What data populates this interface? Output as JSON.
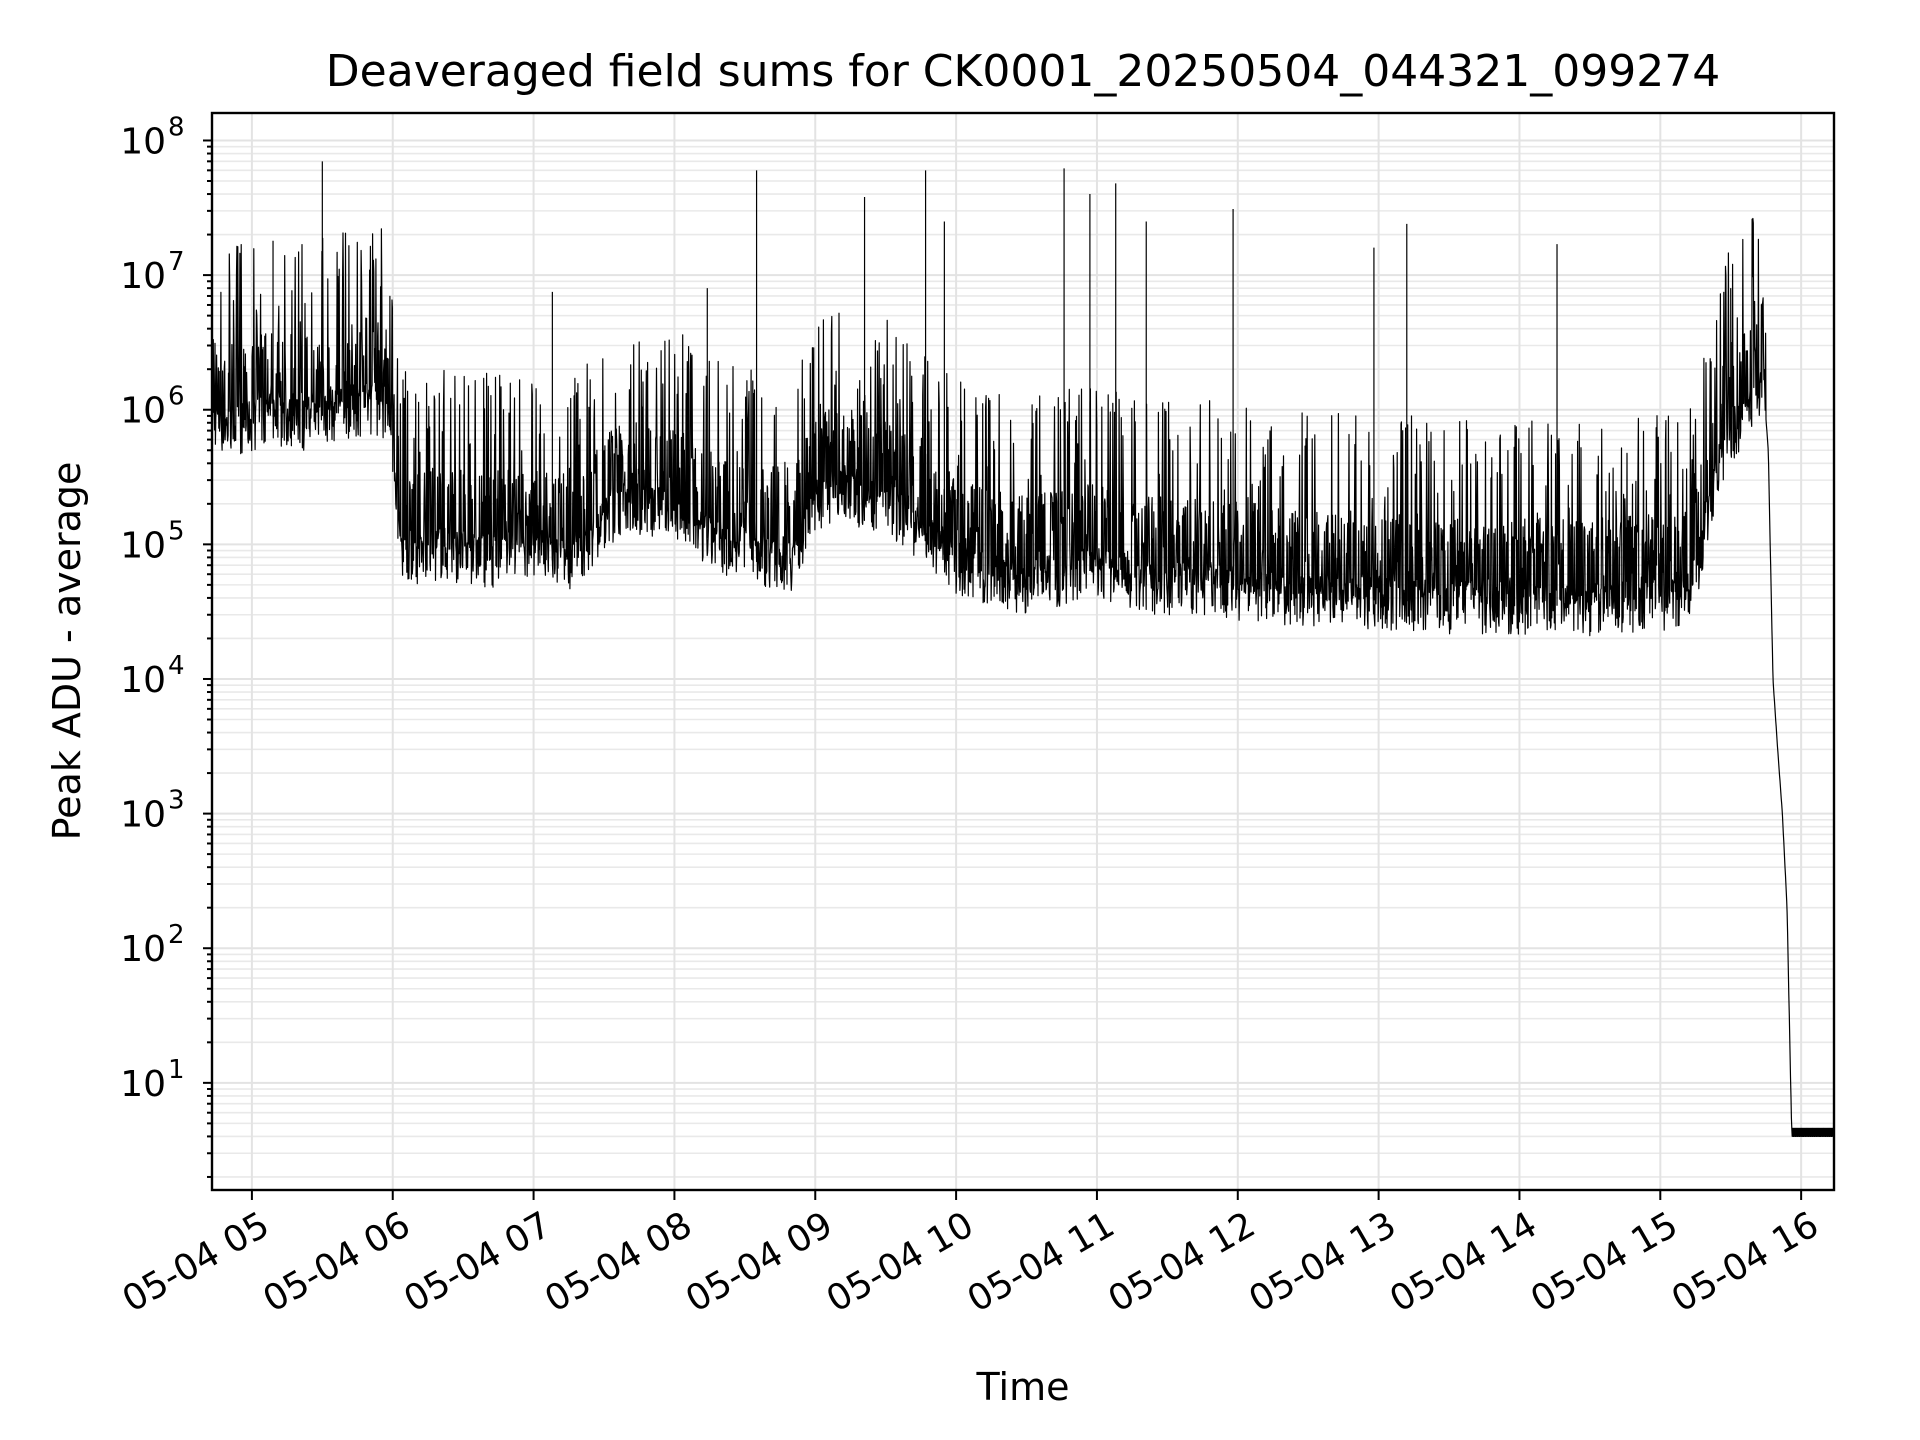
{
  "chart_data": {
    "type": "line",
    "title": "Deaveraged field sums for CK0001_20250504_044321_099274",
    "xlabel": "Time",
    "ylabel": "Peak ADU - average",
    "yscale": "log",
    "ylim": [
      1.6,
      160000000
    ],
    "xlim": [
      "05-04 04:43",
      "05-04 16:14"
    ],
    "x_tick_labels": [
      "05-04 05",
      "05-04 06",
      "05-04 07",
      "05-04 08",
      "05-04 09",
      "05-04 10",
      "05-04 11",
      "05-04 12",
      "05-04 13",
      "05-04 14",
      "05-04 15",
      "05-04 16"
    ],
    "y_tick_labels": [
      {
        "base": "10",
        "exp": "1"
      },
      {
        "base": "10",
        "exp": "2"
      },
      {
        "base": "10",
        "exp": "3"
      },
      {
        "base": "10",
        "exp": "4"
      },
      {
        "base": "10",
        "exp": "5"
      },
      {
        "base": "10",
        "exp": "6"
      },
      {
        "base": "10",
        "exp": "7"
      },
      {
        "base": "10",
        "exp": "8"
      }
    ],
    "grid": true,
    "line_color": "#000000",
    "series": [
      {
        "x": [
          "04:43",
          "04:50",
          "05:00",
          "05:10",
          "05:20",
          "05:30",
          "05:40",
          "05:50",
          "05:58",
          "06:03",
          "06:10",
          "06:20",
          "06:30",
          "06:40",
          "06:50",
          "07:00",
          "07:10",
          "07:20",
          "07:30",
          "07:40",
          "07:50",
          "08:00",
          "08:10",
          "08:20",
          "08:30",
          "08:40",
          "08:50",
          "09:00",
          "09:10",
          "09:20",
          "09:30",
          "09:40",
          "09:50",
          "10:00",
          "10:10",
          "10:20",
          "10:30",
          "10:40",
          "10:50",
          "11:00",
          "11:10",
          "11:20",
          "11:30",
          "11:40",
          "11:50",
          "12:00",
          "12:10",
          "12:20",
          "12:30",
          "12:40",
          "12:50",
          "13:00",
          "13:10",
          "13:20",
          "13:30",
          "13:40",
          "13:50",
          "14:00",
          "14:10",
          "14:20",
          "14:30",
          "14:40",
          "14:50",
          "15:00",
          "15:10",
          "15:15",
          "15:20",
          "15:25",
          "15:30",
          "15:35",
          "15:40",
          "15:44",
          "15:46",
          "15:48",
          "15:50",
          "15:52",
          "15:54",
          "15:56",
          "16:00",
          "16:14"
        ],
        "y": [
          900000,
          700000,
          800000,
          900000,
          800000,
          900000,
          1000000,
          1100000,
          900000,
          100000,
          80000,
          90000,
          85000,
          80000,
          80000,
          80000,
          75000,
          80000,
          150000,
          200000,
          180000,
          170000,
          120000,
          100000,
          90000,
          80000,
          75000,
          200000,
          250000,
          220000,
          200000,
          150000,
          100000,
          70000,
          60000,
          55000,
          50000,
          55000,
          60000,
          65000,
          55000,
          50000,
          50000,
          50000,
          50000,
          45000,
          45000,
          40000,
          40000,
          40000,
          40000,
          38000,
          38000,
          37000,
          36000,
          36000,
          36000,
          35000,
          35000,
          35000,
          35000,
          36000,
          36000,
          38000,
          40000,
          60000,
          150000,
          400000,
          700000,
          800000,
          1200000,
          1500000,
          500000,
          10000,
          3000,
          1000,
          200,
          4,
          4,
          4
        ],
        "spikes": [
          {
            "x": "05:30",
            "y": 70000000
          },
          {
            "x": "05:09",
            "y": 18000000
          },
          {
            "x": "07:08",
            "y": 7500000
          },
          {
            "x": "08:14",
            "y": 8000000
          },
          {
            "x": "08:35",
            "y": 60000000
          },
          {
            "x": "09:21",
            "y": 38000000
          },
          {
            "x": "09:47",
            "y": 60000000
          },
          {
            "x": "09:55",
            "y": 25000000
          },
          {
            "x": "10:46",
            "y": 62000000
          },
          {
            "x": "10:57",
            "y": 40000000
          },
          {
            "x": "11:08",
            "y": 48000000
          },
          {
            "x": "11:21",
            "y": 25000000
          },
          {
            "x": "11:58",
            "y": 31000000
          },
          {
            "x": "12:58",
            "y": 16000000
          },
          {
            "x": "13:12",
            "y": 24000000
          },
          {
            "x": "14:16",
            "y": 17000000
          },
          {
            "x": "15:30",
            "y": 8000000
          }
        ]
      }
    ]
  }
}
